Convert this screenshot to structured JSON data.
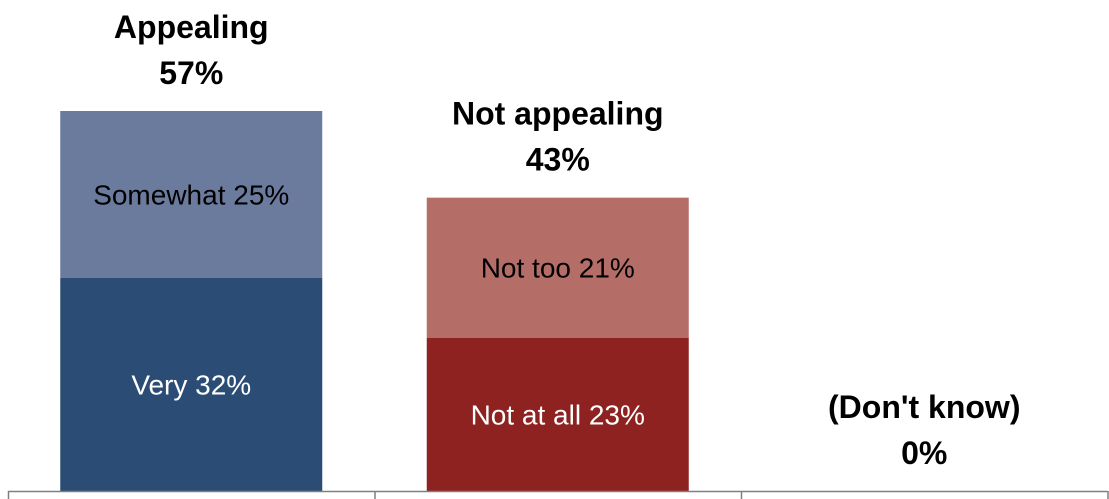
{
  "chart_data": {
    "type": "bar",
    "stacked": true,
    "categories": [
      {
        "label": "Appealing",
        "total_label": "57%",
        "total": 57,
        "segments": [
          {
            "label": "Very",
            "value_label": "32%",
            "value": 32,
            "color": "#2B4D75",
            "text_color": "#FFFFFF"
          },
          {
            "label": "Somewhat",
            "value_label": "25%",
            "value": 25,
            "color": "#6B7B9E",
            "text_color": "#000000"
          }
        ]
      },
      {
        "label": "Not appealing",
        "total_label": "43%",
        "total": 43,
        "segments": [
          {
            "label": "Not at all",
            "value_label": "23%",
            "value": 23,
            "color": "#8E2220",
            "text_color": "#FFFFFF"
          },
          {
            "label": "Not too",
            "value_label": "21%",
            "value": 21,
            "color": "#B56D68",
            "text_color": "#000000"
          }
        ]
      },
      {
        "label": "(Don't know)",
        "total_label": "0%",
        "total": 0,
        "segments": []
      }
    ],
    "ylim": [
      0,
      57
    ],
    "grid": false,
    "legend": "none",
    "axis_color": "#808080"
  }
}
